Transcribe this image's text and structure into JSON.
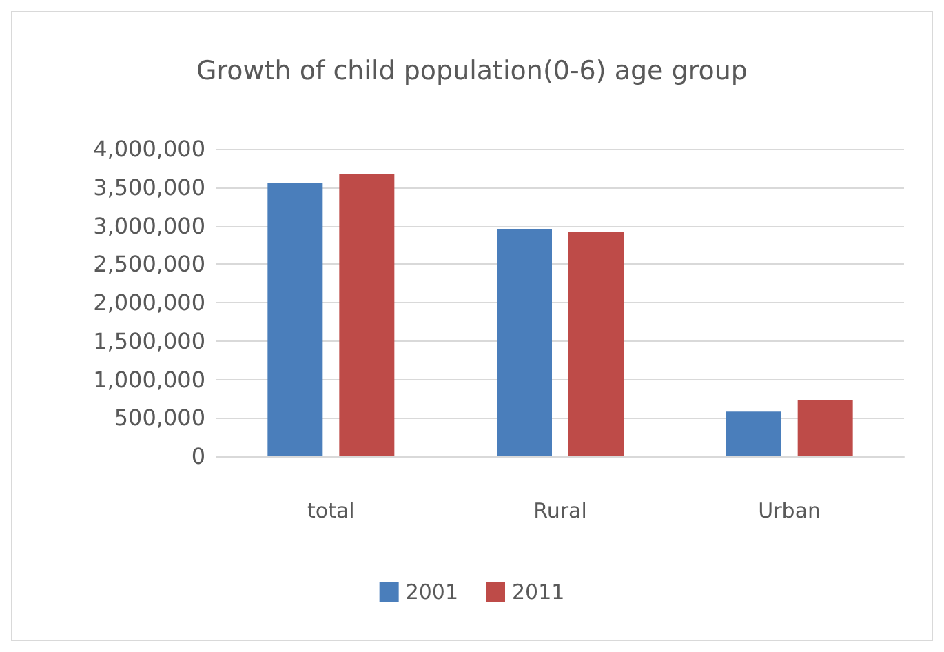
{
  "chart_data": {
    "type": "bar",
    "title": "Growth of child population(0-6) age group",
    "categories": [
      "total",
      "Rural",
      "Urban"
    ],
    "series": [
      {
        "name": "2001",
        "color": "#4a7ebb",
        "values": [
          3560000,
          2960000,
          580000
        ]
      },
      {
        "name": "2011",
        "color": "#be4b48",
        "values": [
          3670000,
          2920000,
          730000
        ]
      }
    ],
    "ylim": [
      0,
      4000000
    ],
    "yticks": [
      {
        "value": 0,
        "label": "0"
      },
      {
        "value": 500000,
        "label": "500,000"
      },
      {
        "value": 1000000,
        "label": "1,000,000"
      },
      {
        "value": 1500000,
        "label": "1,500,000"
      },
      {
        "value": 2000000,
        "label": "2,000,000"
      },
      {
        "value": 2500000,
        "label": "2,500,000"
      },
      {
        "value": 3000000,
        "label": "3,000,000"
      },
      {
        "value": 3500000,
        "label": "3,500,000"
      },
      {
        "value": 4000000,
        "label": "4,000,000"
      }
    ],
    "grid": true,
    "legend": "bottom"
  }
}
